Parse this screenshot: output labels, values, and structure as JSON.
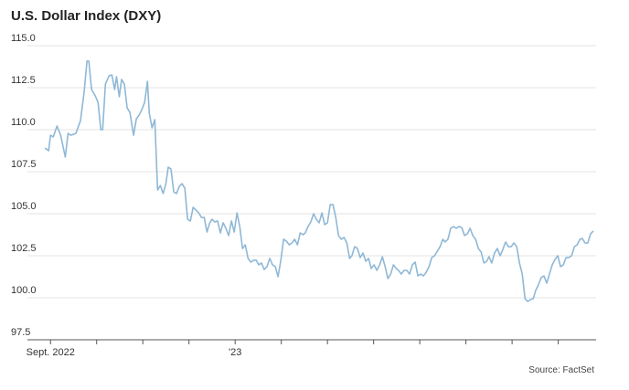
{
  "chart_data": {
    "type": "line",
    "title": "U.S. Dollar Index (DXY)",
    "source": "Source: FactSet",
    "color": "#8fb8d6",
    "grid": true,
    "xlim": [
      -0.5,
      11.82
    ],
    "ylim": [
      97.5,
      115
    ],
    "yticks": [
      {
        "value": 97.5,
        "label": "97.5"
      },
      {
        "value": 100,
        "label": "100.0"
      },
      {
        "value": 102.5,
        "label": "102.5"
      },
      {
        "value": 105,
        "label": "105.0"
      },
      {
        "value": 107.5,
        "label": "107.5"
      },
      {
        "value": 110,
        "label": "110.0"
      },
      {
        "value": 112.5,
        "label": "112.5"
      },
      {
        "value": 115,
        "label": "115.0"
      }
    ],
    "xticks": [
      {
        "value": 0,
        "label": "Sept. 2022"
      },
      {
        "value": 4,
        "label": "'23"
      }
    ],
    "minor_xticks": [
      1,
      2,
      3,
      5,
      6,
      7,
      8,
      9,
      10,
      11
    ],
    "x": [
      -0.12,
      -0.04,
      0,
      0.06,
      0.14,
      0.22,
      0.32,
      0.38,
      0.44,
      0.55,
      0.65,
      0.73,
      0.79,
      0.83,
      0.89,
      0.97,
      1.03,
      1.09,
      1.13,
      1.19,
      1.27,
      1.33,
      1.39,
      1.43,
      1.49,
      1.54,
      1.6,
      1.66,
      1.72,
      1.8,
      1.86,
      1.92,
      1.98,
      2.04,
      2.1,
      2.14,
      2.2,
      2.26,
      2.32,
      2.38,
      2.44,
      2.5,
      2.55,
      2.61,
      2.67,
      2.73,
      2.79,
      2.85,
      2.91,
      2.97,
      3.03,
      3.09,
      3.15,
      3.21,
      3.27,
      3.33,
      3.39,
      3.45,
      3.5,
      3.56,
      3.62,
      3.68,
      3.74,
      3.8,
      3.86,
      3.92,
      3.98,
      4.04,
      4.1,
      4.16,
      4.22,
      4.28,
      4.34,
      4.4,
      4.46,
      4.51,
      4.57,
      4.63,
      4.69,
      4.75,
      4.81,
      4.87,
      4.93,
      4.99,
      5.05,
      5.11,
      5.17,
      5.23,
      5.29,
      5.35,
      5.41,
      5.47,
      5.52,
      5.58,
      5.64,
      5.7,
      5.76,
      5.82,
      5.88,
      5.94,
      6,
      6.06,
      6.12,
      6.18,
      6.24,
      6.3,
      6.36,
      6.42,
      6.48,
      6.53,
      6.59,
      6.65,
      6.71,
      6.77,
      6.83,
      6.89,
      6.95,
      7.01,
      7.07,
      7.13,
      7.19,
      7.25,
      7.31,
      7.37,
      7.43,
      7.49,
      7.54,
      7.6,
      7.66,
      7.72,
      7.78,
      7.84,
      7.9,
      7.96,
      8.02,
      8.08,
      8.14,
      8.2,
      8.26,
      8.32,
      8.38,
      8.44,
      8.5,
      8.55,
      8.61,
      8.67,
      8.73,
      8.79,
      8.85,
      8.91,
      8.97,
      9.03,
      9.09,
      9.15,
      9.21,
      9.27,
      9.33,
      9.39,
      9.45,
      9.5,
      9.56,
      9.62,
      9.68,
      9.74,
      9.8,
      9.86,
      9.92,
      9.98,
      10.04,
      10.1,
      10.16,
      10.22,
      10.28,
      10.34,
      10.4,
      10.46,
      10.51,
      10.57,
      10.63,
      10.69,
      10.75,
      10.81,
      10.87,
      10.93,
      10.99,
      11.05,
      11.11,
      11.17,
      11.23,
      11.29,
      11.35,
      11.41,
      11.47,
      11.52,
      11.58,
      11.64,
      11.7,
      11.76
    ],
    "values": [
      108.91,
      108.75,
      109.67,
      109.57,
      110.22,
      109.67,
      108.37,
      109.78,
      109.67,
      109.78,
      110.54,
      112.28,
      114.08,
      114.08,
      112.39,
      112.01,
      111.63,
      110,
      110,
      112.72,
      113.21,
      113.26,
      112.39,
      113.15,
      111.96,
      112.99,
      112.72,
      111.3,
      111.03,
      109.67,
      110.65,
      110.87,
      111.2,
      111.63,
      112.88,
      110.98,
      110.11,
      110.6,
      106.41,
      106.68,
      106.2,
      106.79,
      107.77,
      107.66,
      106.3,
      106.2,
      106.63,
      106.79,
      106.52,
      104.67,
      104.57,
      105.38,
      105.22,
      105.05,
      104.78,
      104.78,
      103.91,
      104.46,
      104.67,
      104.51,
      104.57,
      103.86,
      104.46,
      104.13,
      103.7,
      104.57,
      103.91,
      105.05,
      104.24,
      102.93,
      103.15,
      102.34,
      102.12,
      102.23,
      102.23,
      101.96,
      102.07,
      101.68,
      101.85,
      102.34,
      101.96,
      101.85,
      101.25,
      102.23,
      103.48,
      103.37,
      103.15,
      103.26,
      103.48,
      103.15,
      103.86,
      103.75,
      103.86,
      104.24,
      104.51,
      105,
      104.67,
      104.46,
      105.05,
      104.35,
      104.46,
      105.54,
      105.54,
      104.78,
      103.7,
      103.48,
      103.59,
      103.26,
      102.34,
      102.5,
      103.04,
      102.93,
      102.39,
      102.66,
      102.17,
      102.34,
      101.74,
      101.96,
      101.63,
      101.96,
      102.44,
      101.85,
      101.14,
      101.41,
      101.96,
      101.74,
      101.63,
      101.41,
      101.63,
      101.63,
      101.41,
      101.96,
      102.12,
      101.3,
      101.41,
      101.3,
      101.52,
      101.85,
      102.39,
      102.5,
      102.77,
      103.04,
      103.48,
      103.32,
      103.48,
      104.13,
      104.24,
      104.13,
      104.24,
      104.18,
      103.7,
      103.8,
      104.13,
      103.7,
      103.48,
      102.93,
      102.72,
      102.07,
      102.17,
      102.44,
      102.07,
      102.66,
      102.93,
      102.5,
      102.88,
      103.32,
      103.04,
      103.04,
      103.26,
      103.04,
      102.07,
      101.41,
      99.95,
      99.78,
      99.89,
      99.95,
      100.43,
      100.76,
      101.2,
      101.3,
      100.87,
      101.41,
      101.96,
      102.28,
      102.5,
      101.85,
      101.96,
      102.39,
      102.39,
      102.5,
      103.04,
      103.15,
      103.48,
      103.53,
      103.26,
      103.26,
      103.8,
      103.97
    ]
  }
}
